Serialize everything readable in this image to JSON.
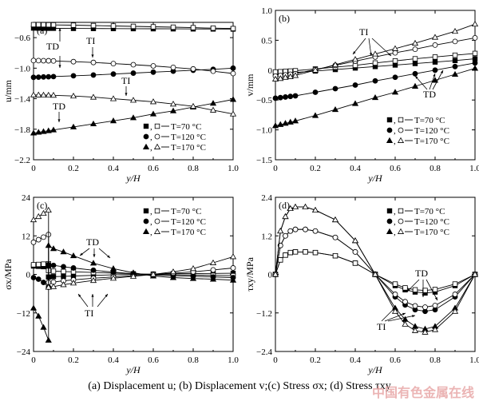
{
  "caption": "(a) Displacement u; (b) Displacement v;(c) Stress σx; (d) Stress τxy",
  "watermark": "中国有色金属在线",
  "legend_entries": [
    {
      "marker_filled": "square",
      "marker_open": "square",
      "label": "T=70 °C"
    },
    {
      "marker_filled": "circle",
      "marker_open": "circle",
      "label": "T=120 °C"
    },
    {
      "marker_filled": "triangle",
      "marker_open": "triangle",
      "label": "T=170 °C"
    }
  ],
  "chart_data": [
    {
      "panel": "(a)",
      "type": "line",
      "xlabel": "y/H",
      "ylabel": "u/mm",
      "xlim": [
        0,
        1.0
      ],
      "ylim": [
        -2.2,
        -0.4
      ],
      "xticks": [
        "0",
        "0.2",
        "0.4",
        "0.6",
        "0.8",
        "1.0"
      ],
      "yticks": [
        "-2.2",
        "-1.8",
        "-1.4",
        "-1.0",
        "-0.6"
      ],
      "annotations": [
        "TD",
        "TI",
        "TI",
        "TD"
      ],
      "legend_position": "bottom-right",
      "series": [
        {
          "name": "T=70 °C",
          "marker": "square",
          "filled": true,
          "x": [
            0,
            0.025,
            0.05,
            0.075,
            0.1,
            0.2,
            0.3,
            0.4,
            0.5,
            0.6,
            0.7,
            0.8,
            0.9,
            1.0
          ],
          "y": [
            -0.475,
            -0.476,
            -0.477,
            -0.478,
            -0.478,
            -0.48,
            -0.481,
            -0.482,
            -0.483,
            -0.484,
            -0.485,
            -0.486,
            -0.487,
            -0.488
          ]
        },
        {
          "name": "T=70 °C",
          "marker": "square",
          "filled": false,
          "x": [
            0,
            0.025,
            0.05,
            0.075,
            0.1,
            0.2,
            0.3,
            0.4,
            0.5,
            0.6,
            0.7,
            0.8,
            0.9,
            1.0
          ],
          "y": [
            -0.43,
            -0.43,
            -0.431,
            -0.432,
            -0.433,
            -0.437,
            -0.442,
            -0.447,
            -0.452,
            -0.458,
            -0.463,
            -0.469,
            -0.475,
            -0.481
          ]
        },
        {
          "name": "T=120 °C",
          "marker": "circle",
          "filled": true,
          "x": [
            0,
            0.025,
            0.05,
            0.075,
            0.1,
            0.2,
            0.3,
            0.4,
            0.5,
            0.6,
            0.7,
            0.8,
            0.9,
            1.0
          ],
          "y": [
            -1.12,
            -1.118,
            -1.115,
            -1.113,
            -1.11,
            -1.1,
            -1.09,
            -1.077,
            -1.065,
            -1.052,
            -1.04,
            -1.027,
            -1.015,
            -1.0
          ]
        },
        {
          "name": "T=120 °C",
          "marker": "circle",
          "filled": false,
          "x": [
            0,
            0.025,
            0.05,
            0.075,
            0.1,
            0.2,
            0.3,
            0.4,
            0.5,
            0.6,
            0.7,
            0.8,
            0.9,
            1.0
          ],
          "y": [
            -0.9,
            -0.901,
            -0.902,
            -0.903,
            -0.905,
            -0.915,
            -0.925,
            -0.94,
            -0.955,
            -0.97,
            -0.99,
            -1.01,
            -1.04,
            -1.07
          ]
        },
        {
          "name": "T=170 °C",
          "marker": "triangle",
          "filled": true,
          "x": [
            0,
            0.025,
            0.05,
            0.075,
            0.1,
            0.2,
            0.3,
            0.4,
            0.5,
            0.6,
            0.7,
            0.8,
            0.9,
            1.0
          ],
          "y": [
            -1.85,
            -1.84,
            -1.83,
            -1.82,
            -1.81,
            -1.77,
            -1.73,
            -1.69,
            -1.65,
            -1.6,
            -1.56,
            -1.51,
            -1.46,
            -1.41
          ]
        },
        {
          "name": "T=170 °C",
          "marker": "triangle",
          "filled": false,
          "x": [
            0,
            0.025,
            0.05,
            0.075,
            0.1,
            0.2,
            0.3,
            0.4,
            0.5,
            0.6,
            0.7,
            0.8,
            0.9,
            1.0
          ],
          "y": [
            -1.35,
            -1.351,
            -1.352,
            -1.353,
            -1.355,
            -1.365,
            -1.38,
            -1.4,
            -1.42,
            -1.44,
            -1.47,
            -1.5,
            -1.55,
            -1.6
          ]
        }
      ]
    },
    {
      "panel": "(b)",
      "type": "line",
      "xlabel": "y/H",
      "ylabel": "v/mm",
      "xlim": [
        0,
        1.0
      ],
      "ylim": [
        -1.5,
        1.0
      ],
      "xticks": [
        "0",
        "0.2",
        "0.4",
        "0.6",
        "0.8",
        "1.0"
      ],
      "yticks": [
        "-1.5",
        "-1.0",
        "-0.5",
        "0",
        "0.5",
        "1.0"
      ],
      "annotations": [
        "TI",
        "TD"
      ],
      "legend_position": "bottom-right",
      "series": [
        {
          "name": "T=70 °C",
          "marker": "square",
          "filled": true,
          "x": [
            0,
            0.025,
            0.05,
            0.075,
            0.1,
            0.2,
            0.3,
            0.4,
            0.5,
            0.6,
            0.7,
            0.8,
            0.9,
            1.0
          ],
          "y": [
            -0.06,
            -0.055,
            -0.05,
            -0.045,
            -0.04,
            -0.015,
            0.01,
            0.035,
            0.06,
            0.085,
            0.11,
            0.135,
            0.16,
            0.19
          ]
        },
        {
          "name": "T=70 °C",
          "marker": "square",
          "filled": false,
          "x": [
            0,
            0.025,
            0.05,
            0.075,
            0.1,
            0.2,
            0.3,
            0.4,
            0.5,
            0.6,
            0.7,
            0.8,
            0.9,
            1.0
          ],
          "y": [
            -0.03,
            -0.026,
            -0.02,
            -0.015,
            -0.01,
            0.02,
            0.05,
            0.08,
            0.12,
            0.155,
            0.19,
            0.22,
            0.25,
            0.28
          ]
        },
        {
          "name": "T=120 °C",
          "marker": "circle",
          "filled": true,
          "x": [
            0,
            0.025,
            0.05,
            0.075,
            0.1,
            0.2,
            0.3,
            0.4,
            0.5,
            0.6,
            0.7,
            0.8,
            0.9,
            1.0
          ],
          "y": [
            -0.47,
            -0.46,
            -0.45,
            -0.44,
            -0.43,
            -0.37,
            -0.31,
            -0.25,
            -0.18,
            -0.12,
            -0.06,
            0.0,
            0.06,
            0.12
          ]
        },
        {
          "name": "T=120 °C",
          "marker": "circle",
          "filled": false,
          "x": [
            0,
            0.025,
            0.05,
            0.075,
            0.1,
            0.2,
            0.3,
            0.4,
            0.5,
            0.6,
            0.7,
            0.8,
            0.9,
            1.0
          ],
          "y": [
            -0.1,
            -0.09,
            -0.08,
            -0.07,
            -0.06,
            0.01,
            0.08,
            0.15,
            0.22,
            0.29,
            0.35,
            0.42,
            0.48,
            0.54
          ]
        },
        {
          "name": "T=170 °C",
          "marker": "triangle",
          "filled": true,
          "x": [
            0,
            0.025,
            0.05,
            0.075,
            0.1,
            0.2,
            0.3,
            0.4,
            0.5,
            0.6,
            0.7,
            0.8,
            0.9,
            1.0
          ],
          "y": [
            -0.93,
            -0.91,
            -0.89,
            -0.87,
            -0.85,
            -0.76,
            -0.66,
            -0.56,
            -0.46,
            -0.37,
            -0.27,
            -0.17,
            -0.07,
            0.03
          ]
        },
        {
          "name": "T=170 °C",
          "marker": "triangle",
          "filled": false,
          "x": [
            0,
            0.025,
            0.05,
            0.075,
            0.1,
            0.2,
            0.3,
            0.4,
            0.5,
            0.6,
            0.7,
            0.8,
            0.9,
            1.0
          ],
          "y": [
            -0.15,
            -0.14,
            -0.12,
            -0.11,
            -0.09,
            0.0,
            0.09,
            0.18,
            0.27,
            0.36,
            0.45,
            0.55,
            0.65,
            0.77
          ]
        }
      ]
    },
    {
      "panel": "(c)",
      "type": "line",
      "xlabel": "y/H",
      "ylabel": "σx/MPa",
      "xlim": [
        0,
        1.0
      ],
      "ylim": [
        -24,
        24
      ],
      "xticks": [
        "0",
        "0.2",
        "0.4",
        "0.6",
        "0.8",
        "1.0"
      ],
      "yticks": [
        "-24",
        "-12",
        "0",
        "12",
        "24"
      ],
      "annotations": [
        "TD",
        "TI"
      ],
      "legend_position": "top-right",
      "series": [
        {
          "name": "T=70 °C",
          "marker": "square",
          "filled": true,
          "x": [
            0,
            0.025,
            0.05,
            0.075,
            0.075,
            0.1,
            0.15,
            0.2,
            0.3,
            0.4,
            0.5,
            0.6,
            0.7,
            0.8,
            0.9,
            1.0
          ],
          "y": [
            2.6,
            2.5,
            2.4,
            2.2,
            -0.8,
            -0.7,
            -0.6,
            -0.5,
            -0.3,
            -0.15,
            0.0,
            0.1,
            0.2,
            0.25,
            0.3,
            0.35
          ]
        },
        {
          "name": "T=70 °C",
          "marker": "square",
          "filled": false,
          "x": [
            0,
            0.025,
            0.05,
            0.075,
            0.075,
            0.1,
            0.15,
            0.2,
            0.3,
            0.4,
            0.5,
            0.6,
            0.7,
            0.8,
            0.9,
            1.0
          ],
          "y": [
            3.0,
            3.1,
            3.2,
            3.3,
            1.2,
            1.0,
            0.9,
            0.8,
            0.6,
            0.4,
            0.2,
            0.0,
            -0.1,
            -0.2,
            -0.3,
            -0.4
          ]
        },
        {
          "name": "T=120 °C",
          "marker": "circle",
          "filled": true,
          "x": [
            0,
            0.025,
            0.05,
            0.075,
            0.075,
            0.1,
            0.15,
            0.2,
            0.3,
            0.4,
            0.5,
            0.6,
            0.7,
            0.8,
            0.9,
            1.0
          ],
          "y": [
            -1.0,
            -1.5,
            -2.5,
            -4.0,
            3.0,
            2.8,
            2.4,
            2.0,
            1.3,
            0.7,
            0.2,
            -0.2,
            -0.4,
            -0.6,
            -0.8,
            -1.0
          ]
        },
        {
          "name": "T=120 °C",
          "marker": "circle",
          "filled": false,
          "x": [
            0,
            0.025,
            0.05,
            0.075,
            0.075,
            0.1,
            0.15,
            0.2,
            0.3,
            0.4,
            0.5,
            0.6,
            0.7,
            0.8,
            0.9,
            1.0
          ],
          "y": [
            10.0,
            10.8,
            11.6,
            12.4,
            -2.5,
            -2.4,
            -2.0,
            -1.7,
            -1.2,
            -0.8,
            -0.4,
            0.0,
            0.4,
            0.8,
            1.4,
            2.0
          ]
        },
        {
          "name": "T=170 °C",
          "marker": "triangle",
          "filled": true,
          "x": [
            0,
            0.025,
            0.05,
            0.075,
            0.075,
            0.1,
            0.15,
            0.2,
            0.3,
            0.4,
            0.5,
            0.6,
            0.7,
            0.8,
            0.9,
            1.0
          ],
          "y": [
            -10.5,
            -13.0,
            -16.5,
            -20.5,
            9.0,
            8.0,
            7.0,
            5.8,
            3.5,
            1.8,
            0.5,
            -0.5,
            -1.0,
            -1.3,
            -1.5,
            -1.8
          ]
        },
        {
          "name": "T=170 °C",
          "marker": "triangle",
          "filled": false,
          "x": [
            0,
            0.025,
            0.05,
            0.075,
            0.075,
            0.1,
            0.15,
            0.2,
            0.3,
            0.4,
            0.5,
            0.6,
            0.7,
            0.8,
            0.9,
            1.0
          ],
          "y": [
            17.0,
            18.0,
            19.0,
            20.0,
            -4.0,
            -3.8,
            -3.2,
            -2.7,
            -1.9,
            -1.2,
            -0.6,
            0.0,
            0.8,
            1.8,
            3.6,
            5.5
          ]
        }
      ]
    },
    {
      "panel": "(d)",
      "type": "line",
      "xlabel": "y/H",
      "ylabel": "τxy/MPa",
      "xlim": [
        0,
        1.0
      ],
      "ylim": [
        -2.4,
        2.4
      ],
      "xticks": [
        "0",
        "0.2",
        "0.4",
        "0.6",
        "0.8",
        "1.0"
      ],
      "yticks": [
        "-2.4",
        "-1.2",
        "0",
        "1.2",
        "2.4"
      ],
      "annotations": [
        "TD",
        "TI"
      ],
      "legend_position": "top-right",
      "series": [
        {
          "name": "T=70 °C",
          "marker": "square",
          "filled": true,
          "x": [
            0,
            0.025,
            0.05,
            0.075,
            0.1,
            0.15,
            0.2,
            0.3,
            0.4,
            0.5,
            0.6,
            0.65,
            0.7,
            0.75,
            0.8,
            0.9,
            1.0
          ],
          "y": [
            0,
            0.45,
            0.6,
            0.68,
            0.7,
            0.7,
            0.68,
            0.58,
            0.35,
            0.0,
            -0.35,
            -0.48,
            -0.55,
            -0.58,
            -0.55,
            -0.35,
            0.0
          ]
        },
        {
          "name": "T=70 °C",
          "marker": "square",
          "filled": false,
          "x": [
            0,
            0.025,
            0.05,
            0.075,
            0.1,
            0.15,
            0.2,
            0.3,
            0.4,
            0.5,
            0.6,
            0.65,
            0.7,
            0.75,
            0.8,
            0.9,
            1.0
          ],
          "y": [
            0,
            0.45,
            0.6,
            0.68,
            0.7,
            0.7,
            0.68,
            0.58,
            0.35,
            0.0,
            -0.3,
            -0.42,
            -0.48,
            -0.5,
            -0.47,
            -0.3,
            0.0
          ]
        },
        {
          "name": "T=120 °C",
          "marker": "circle",
          "filled": true,
          "x": [
            0,
            0.025,
            0.05,
            0.075,
            0.1,
            0.15,
            0.2,
            0.3,
            0.4,
            0.5,
            0.6,
            0.65,
            0.7,
            0.75,
            0.8,
            0.9,
            1.0
          ],
          "y": [
            0,
            0.9,
            1.2,
            1.35,
            1.4,
            1.4,
            1.35,
            1.15,
            0.7,
            0.0,
            -0.7,
            -0.95,
            -1.1,
            -1.15,
            -1.1,
            -0.7,
            0.0
          ]
        },
        {
          "name": "T=120 °C",
          "marker": "circle",
          "filled": false,
          "x": [
            0,
            0.025,
            0.05,
            0.075,
            0.1,
            0.15,
            0.2,
            0.3,
            0.4,
            0.5,
            0.6,
            0.65,
            0.7,
            0.75,
            0.8,
            0.9,
            1.0
          ],
          "y": [
            0,
            0.9,
            1.2,
            1.35,
            1.4,
            1.4,
            1.35,
            1.15,
            0.7,
            0.0,
            -0.62,
            -0.85,
            -0.98,
            -1.02,
            -0.97,
            -0.62,
            0.0
          ]
        },
        {
          "name": "T=170 °C",
          "marker": "triangle",
          "filled": true,
          "x": [
            0,
            0.025,
            0.05,
            0.075,
            0.1,
            0.15,
            0.2,
            0.3,
            0.4,
            0.5,
            0.6,
            0.65,
            0.7,
            0.75,
            0.8,
            0.9,
            1.0
          ],
          "y": [
            0,
            1.35,
            1.8,
            2.05,
            2.1,
            2.1,
            2.0,
            1.7,
            1.05,
            0.0,
            -1.05,
            -1.4,
            -1.62,
            -1.7,
            -1.62,
            -1.05,
            0.0
          ]
        },
        {
          "name": "T=170 °C",
          "marker": "triangle",
          "filled": false,
          "x": [
            0,
            0.025,
            0.05,
            0.075,
            0.1,
            0.15,
            0.2,
            0.3,
            0.4,
            0.5,
            0.6,
            0.65,
            0.7,
            0.75,
            0.8,
            0.9,
            1.0
          ],
          "y": [
            0,
            1.35,
            1.8,
            2.05,
            2.1,
            2.1,
            2.0,
            1.7,
            1.05,
            0.0,
            -1.15,
            -1.55,
            -1.75,
            -1.8,
            -1.72,
            -1.15,
            0.0
          ]
        }
      ]
    }
  ]
}
